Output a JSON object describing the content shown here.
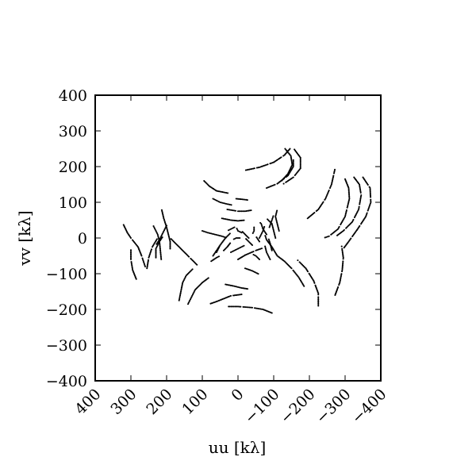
{
  "chart_data": {
    "type": "scatter",
    "title": "",
    "xlabel": "uu [kλ]",
    "ylabel": "vv [kλ]",
    "xlim": [
      400,
      -400
    ],
    "ylim": [
      -400,
      400
    ],
    "x_ticks": [
      400,
      300,
      200,
      100,
      0,
      -100,
      -200,
      -300,
      -400
    ],
    "x_tick_labels": [
      "400",
      "300",
      "200",
      "100",
      "0",
      "−100",
      "−200",
      "−300",
      "−400"
    ],
    "y_ticks": [
      400,
      300,
      200,
      100,
      0,
      -100,
      -200,
      -300,
      -400
    ],
    "y_tick_labels": [
      "400",
      "300",
      "200",
      "100",
      "0",
      "−100",
      "−200",
      "−300",
      "−400"
    ],
    "grid": false,
    "legend": "none",
    "marker_color": "#000000",
    "tracks": [
      {
        "points": [
          [
            -22,
            190
          ],
          [
            -60,
            198
          ],
          [
            -100,
            212
          ],
          [
            -130,
            232
          ],
          [
            -150,
            255
          ]
        ]
      },
      {
        "points": [
          [
            -132,
            250
          ],
          [
            -148,
            230
          ],
          [
            -152,
            205
          ],
          [
            -140,
            180
          ],
          [
            -120,
            158
          ]
        ]
      },
      {
        "points": [
          [
            -158,
            248
          ],
          [
            -175,
            225
          ],
          [
            -175,
            195
          ],
          [
            -155,
            170
          ],
          [
            -125,
            150
          ]
        ]
      },
      {
        "points": [
          [
            -80,
            140
          ],
          [
            -110,
            152
          ],
          [
            -140,
            175
          ],
          [
            -155,
            200
          ],
          [
            -155,
            222
          ]
        ]
      },
      {
        "points": [
          [
            -195,
            55
          ],
          [
            -225,
            80
          ],
          [
            -245,
            110
          ],
          [
            -262,
            150
          ],
          [
            -272,
            195
          ]
        ]
      },
      {
        "points": [
          [
            -300,
            165
          ],
          [
            -310,
            140
          ],
          [
            -312,
            110
          ],
          [
            -300,
            60
          ],
          [
            -280,
            25
          ],
          [
            -255,
            5
          ],
          [
            -240,
            0
          ]
        ]
      },
      {
        "points": [
          [
            -325,
            170
          ],
          [
            -340,
            150
          ],
          [
            -345,
            120
          ],
          [
            -338,
            80
          ],
          [
            -320,
            45
          ],
          [
            -295,
            20
          ],
          [
            -275,
            5
          ]
        ]
      },
      {
        "points": [
          [
            -350,
            170
          ],
          [
            -370,
            140
          ],
          [
            -372,
            100
          ],
          [
            -358,
            60
          ],
          [
            -335,
            25
          ],
          [
            -310,
            -10
          ],
          [
            -295,
            -30
          ]
        ]
      },
      {
        "points": [
          [
            -272,
            -160
          ],
          [
            -285,
            -125
          ],
          [
            -292,
            -90
          ],
          [
            -295,
            -55
          ],
          [
            -290,
            -20
          ]
        ]
      },
      {
        "points": [
          [
            -225,
            -190
          ],
          [
            -225,
            -155
          ],
          [
            -212,
            -120
          ],
          [
            -190,
            -85
          ],
          [
            -165,
            -60
          ]
        ]
      },
      {
        "points": [
          [
            -185,
            -135
          ],
          [
            -170,
            -110
          ],
          [
            -150,
            -85
          ],
          [
            -130,
            -65
          ],
          [
            -110,
            -50
          ]
        ]
      },
      {
        "points": [
          [
            -95,
            -210
          ],
          [
            -70,
            -200
          ],
          [
            -40,
            -195
          ],
          [
            0,
            -192
          ],
          [
            30,
            -192
          ]
        ]
      },
      {
        "points": [
          [
            -10,
            -158
          ],
          [
            20,
            -162
          ],
          [
            40,
            -170
          ],
          [
            60,
            -178
          ],
          [
            80,
            -185
          ]
        ]
      },
      {
        "points": [
          [
            35,
            -130
          ],
          [
            10,
            -135
          ],
          [
            -10,
            -140
          ],
          [
            -30,
            -143
          ]
        ]
      },
      {
        "points": [
          [
            -20,
            -85
          ],
          [
            -40,
            -92
          ],
          [
            -60,
            -102
          ]
        ]
      },
      {
        "points": [
          [
            165,
            -175
          ],
          [
            160,
            -150
          ],
          [
            155,
            -125
          ],
          [
            145,
            -105
          ],
          [
            125,
            -85
          ]
        ]
      },
      {
        "points": [
          [
            140,
            -185
          ],
          [
            130,
            -165
          ],
          [
            120,
            -145
          ],
          [
            100,
            -125
          ],
          [
            80,
            -110
          ]
        ]
      },
      {
        "points": [
          [
            115,
            -75
          ],
          [
            140,
            -50
          ],
          [
            160,
            -30
          ],
          [
            180,
            -10
          ],
          [
            190,
            0
          ]
        ]
      },
      {
        "points": [
          [
            230,
            -55
          ],
          [
            230,
            -30
          ],
          [
            220,
            -10
          ],
          [
            210,
            5
          ]
        ]
      },
      {
        "points": [
          [
            255,
            -85
          ],
          [
            250,
            -55
          ],
          [
            240,
            -25
          ],
          [
            225,
            0
          ]
        ]
      },
      {
        "points": [
          [
            285,
            -115
          ],
          [
            295,
            -90
          ],
          [
            300,
            -60
          ],
          [
            300,
            -30
          ]
        ]
      },
      {
        "points": [
          [
            260,
            -80
          ],
          [
            270,
            -50
          ],
          [
            280,
            -25
          ],
          [
            300,
            0
          ],
          [
            310,
            15
          ],
          [
            322,
            40
          ]
        ]
      },
      {
        "points": [
          [
            215,
            -60
          ],
          [
            218,
            -30
          ],
          [
            220,
            -10
          ],
          [
            225,
            10
          ],
          [
            240,
            40
          ]
        ]
      },
      {
        "points": [
          [
            190,
            -30
          ],
          [
            190,
            -10
          ],
          [
            195,
            10
          ],
          [
            200,
            30
          ],
          [
            208,
            55
          ],
          [
            215,
            85
          ]
        ]
      },
      {
        "points": [
          [
            200,
            35
          ],
          [
            210,
            15
          ],
          [
            220,
            -5
          ],
          [
            230,
            -20
          ]
        ]
      },
      {
        "points": [
          [
            60,
            -40
          ],
          [
            50,
            -20
          ],
          [
            35,
            0
          ],
          [
            20,
            15
          ]
        ]
      },
      {
        "points": [
          [
            100,
            20
          ],
          [
            85,
            15
          ],
          [
            65,
            10
          ],
          [
            45,
            5
          ],
          [
            30,
            0
          ]
        ]
      },
      {
        "points": [
          [
            75,
            -65
          ],
          [
            60,
            -55
          ],
          [
            50,
            -50
          ]
        ]
      },
      {
        "points": [
          [
            95,
            160
          ],
          [
            80,
            145
          ],
          [
            60,
            132
          ],
          [
            40,
            128
          ],
          [
            25,
            125
          ]
        ]
      },
      {
        "points": [
          [
            70,
            110
          ],
          [
            50,
            100
          ],
          [
            30,
            95
          ],
          [
            15,
            92
          ]
        ]
      },
      {
        "points": [
          [
            45,
            55
          ],
          [
            20,
            50
          ],
          [
            0,
            48
          ],
          [
            -20,
            50
          ]
        ]
      },
      {
        "points": [
          [
            30,
            80
          ],
          [
            0,
            75
          ],
          [
            -20,
            75
          ],
          [
            -40,
            78
          ]
        ]
      },
      {
        "points": [
          [
            5,
            110
          ],
          [
            -15,
            108
          ],
          [
            -30,
            106
          ]
        ]
      },
      {
        "points": [
          [
            0,
            -60
          ],
          [
            -20,
            -48
          ],
          [
            -50,
            -35
          ],
          [
            -70,
            -28
          ]
        ]
      },
      {
        "points": [
          [
            20,
            -40
          ],
          [
            0,
            -30
          ],
          [
            -20,
            -20
          ]
        ]
      },
      {
        "points": [
          [
            -60,
            0
          ],
          [
            -70,
            20
          ],
          [
            -75,
            35
          ]
        ]
      },
      {
        "points": [
          [
            -105,
            0
          ],
          [
            -100,
            20
          ],
          [
            -95,
            40
          ],
          [
            -80,
            55
          ]
        ]
      },
      {
        "points": [
          [
            -115,
            20
          ],
          [
            -110,
            40
          ],
          [
            -105,
            60
          ],
          [
            -110,
            80
          ]
        ]
      },
      {
        "points": [
          [
            -88,
            30
          ],
          [
            -95,
            50
          ],
          [
            -100,
            65
          ]
        ]
      },
      {
        "points": [
          [
            -80,
            10
          ],
          [
            -70,
            25
          ],
          [
            -65,
            40
          ],
          [
            -60,
            45
          ]
        ]
      },
      {
        "points": [
          [
            -110,
            -50
          ],
          [
            -95,
            -25
          ],
          [
            -80,
            -5
          ],
          [
            -75,
            10
          ]
        ]
      },
      {
        "points": [
          [
            -90,
            -60
          ],
          [
            -80,
            -40
          ],
          [
            -75,
            -20
          ]
        ]
      },
      {
        "points": [
          [
            -60,
            -60
          ],
          [
            -50,
            -50
          ],
          [
            -40,
            -45
          ]
        ]
      },
      {
        "points": [
          [
            -40,
            -20
          ],
          [
            -30,
            -10
          ],
          [
            -20,
            0
          ]
        ]
      },
      {
        "points": [
          [
            40,
            -35
          ],
          [
            30,
            -25
          ],
          [
            20,
            -12
          ]
        ]
      },
      {
        "points": [
          [
            70,
            -50
          ],
          [
            60,
            -35
          ],
          [
            50,
            -20
          ]
        ]
      },
      {
        "points": [
          [
            -30,
            0
          ],
          [
            -20,
            10
          ],
          [
            -10,
            20
          ]
        ]
      },
      {
        "points": [
          [
            -60,
            -10
          ],
          [
            -50,
            5
          ]
        ]
      },
      {
        "points": [
          [
            10,
            30
          ],
          [
            20,
            25
          ],
          [
            30,
            20
          ]
        ]
      },
      {
        "points": [
          [
            -10,
            15
          ],
          [
            0,
            20
          ],
          [
            5,
            30
          ]
        ]
      },
      {
        "points": [
          [
            -45,
            30
          ],
          [
            -45,
            20
          ],
          [
            -40,
            10
          ]
        ]
      },
      {
        "points": [
          [
            -95,
            -35
          ],
          [
            -90,
            -15
          ],
          [
            -85,
            0
          ]
        ]
      },
      {
        "points": [
          [
            -5,
            0
          ],
          [
            5,
            0
          ],
          [
            15,
            -5
          ]
        ]
      }
    ]
  }
}
